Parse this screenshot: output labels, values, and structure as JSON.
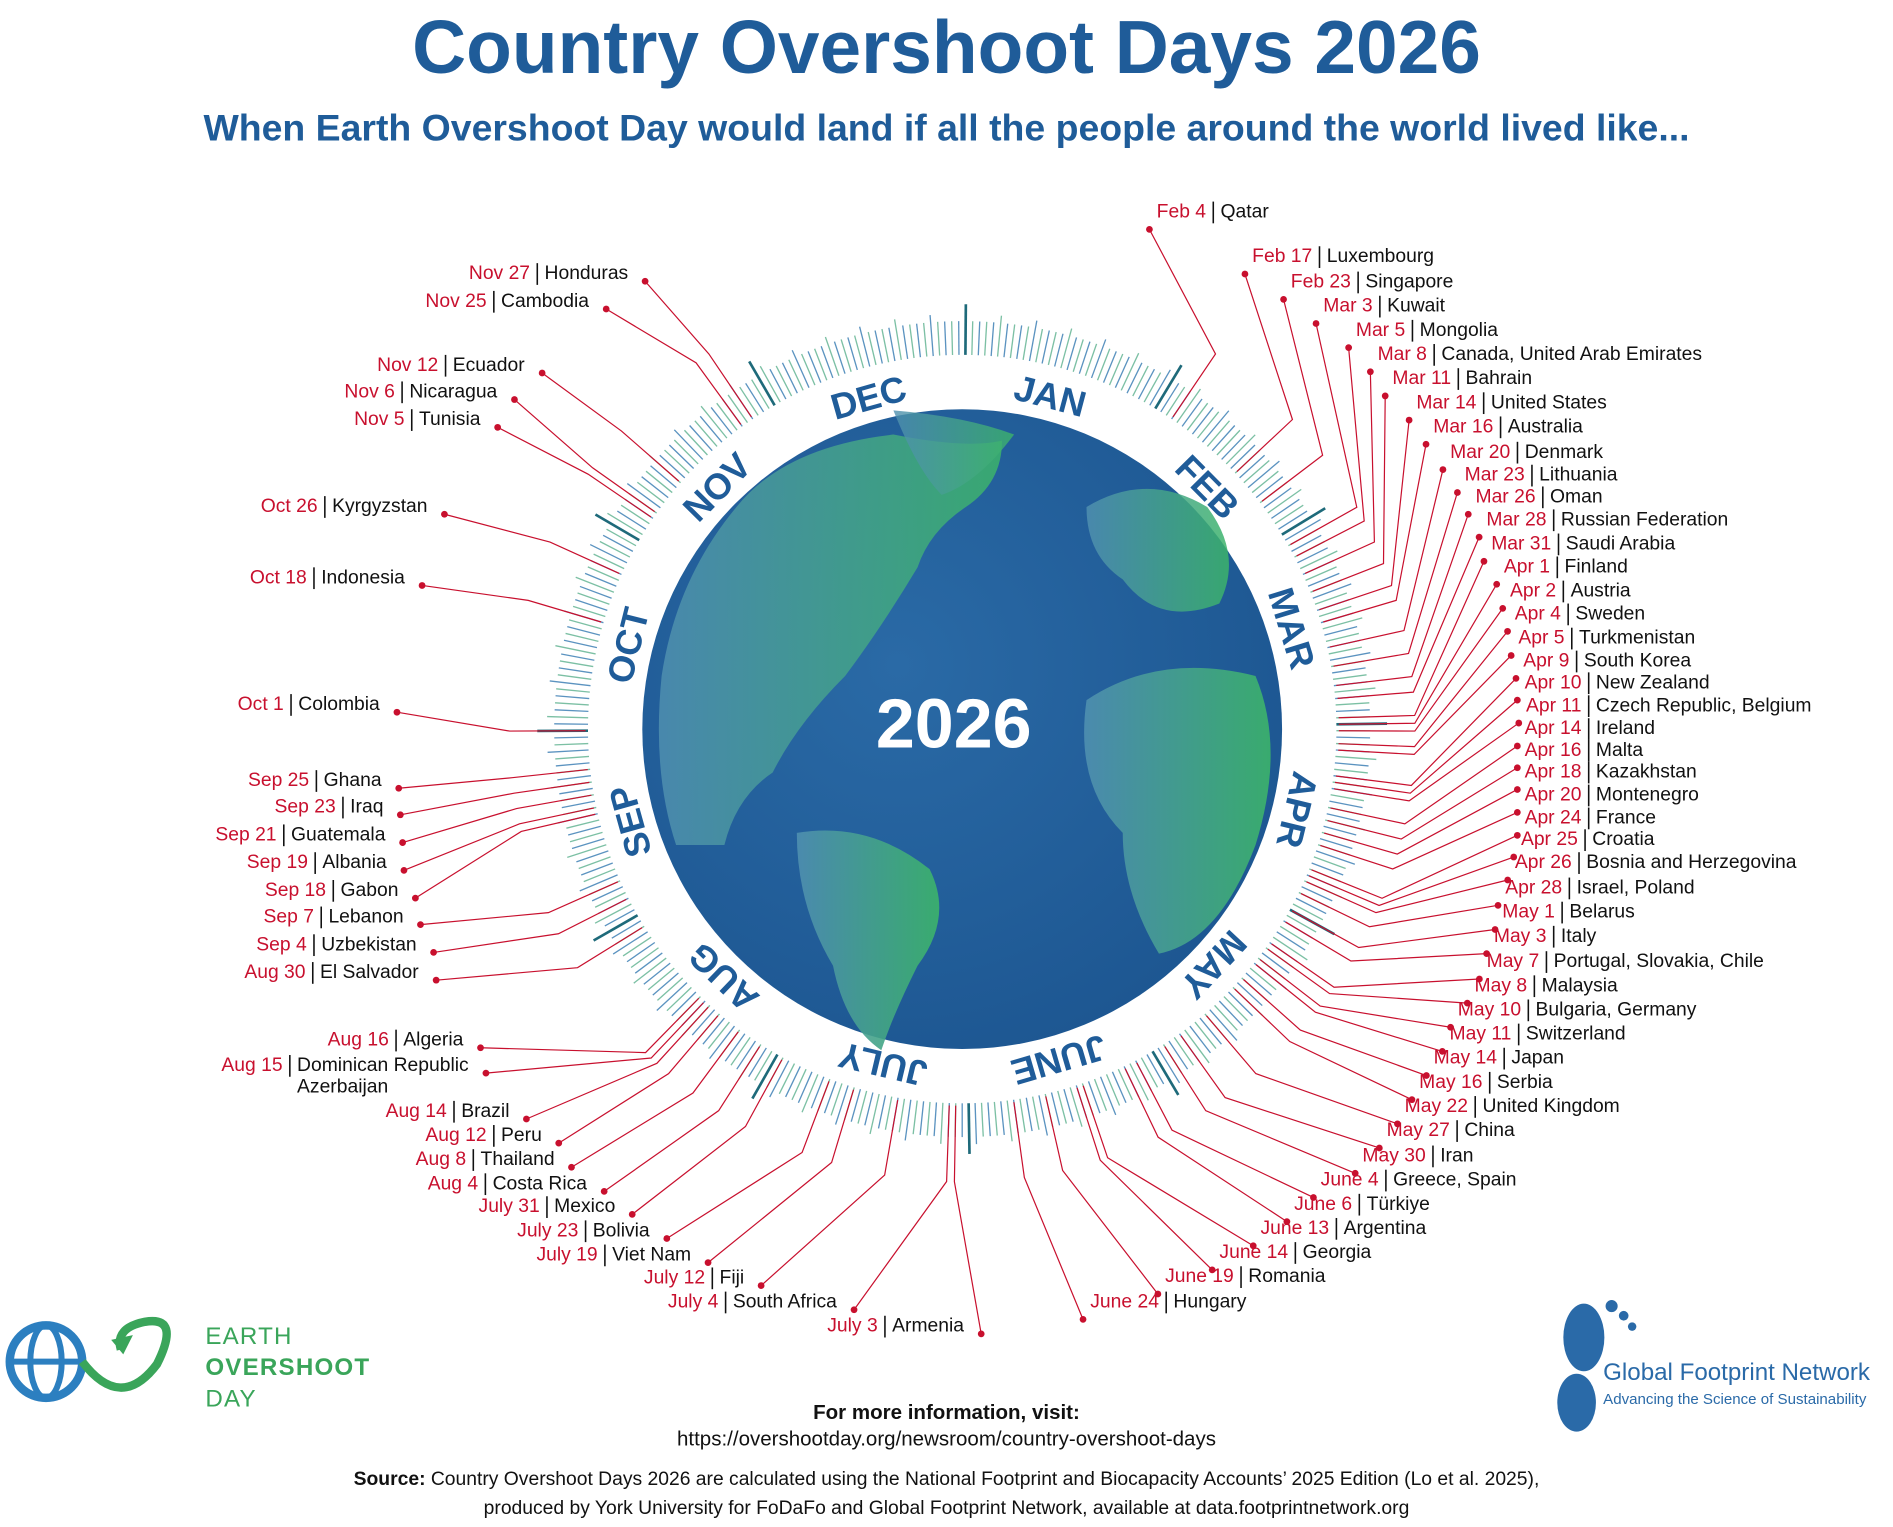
{
  "header": {
    "title": "Country Overshoot Days 2026",
    "subtitle": "When Earth Overshoot Day would land if all the people around the world lived like..."
  },
  "center_label": "2026",
  "months": [
    "JAN",
    "FEB",
    "MAR",
    "APR",
    "MAY",
    "JUNE",
    "JULY",
    "AUG",
    "SEP",
    "OCT",
    "NOV",
    "DEC"
  ],
  "countries": [
    {
      "date": "Feb 4",
      "country": "Qatar"
    },
    {
      "date": "Feb 17",
      "country": "Luxembourg"
    },
    {
      "date": "Feb 23",
      "country": "Singapore"
    },
    {
      "date": "Mar 3",
      "country": "Kuwait"
    },
    {
      "date": "Mar 5",
      "country": "Mongolia"
    },
    {
      "date": "Mar 8",
      "country": "Canada, United Arab Emirates"
    },
    {
      "date": "Mar 11",
      "country": "Bahrain"
    },
    {
      "date": "Mar 14",
      "country": "United States"
    },
    {
      "date": "Mar 16",
      "country": "Australia"
    },
    {
      "date": "Mar 20",
      "country": "Denmark"
    },
    {
      "date": "Mar 23",
      "country": "Lithuania"
    },
    {
      "date": "Mar 26",
      "country": "Oman"
    },
    {
      "date": "Mar 28",
      "country": "Russian Federation"
    },
    {
      "date": "Mar 31",
      "country": "Saudi Arabia"
    },
    {
      "date": "Apr 1",
      "country": "Finland"
    },
    {
      "date": "Apr 2",
      "country": "Austria"
    },
    {
      "date": "Apr 4",
      "country": "Sweden"
    },
    {
      "date": "Apr 5",
      "country": "Turkmenistan"
    },
    {
      "date": "Apr 9",
      "country": "South Korea"
    },
    {
      "date": "Apr 10",
      "country": "New Zealand"
    },
    {
      "date": "Apr 11",
      "country": "Czech Republic, Belgium"
    },
    {
      "date": "Apr 14",
      "country": "Ireland"
    },
    {
      "date": "Apr 16",
      "country": "Malta"
    },
    {
      "date": "Apr 18",
      "country": "Kazakhstan"
    },
    {
      "date": "Apr 20",
      "country": "Montenegro"
    },
    {
      "date": "Apr 24",
      "country": "France"
    },
    {
      "date": "Apr 25",
      "country": "Croatia"
    },
    {
      "date": "Apr 26",
      "country": "Bosnia and Herzegovina"
    },
    {
      "date": "Apr 28",
      "country": "Israel, Poland"
    },
    {
      "date": "May 1",
      "country": "Belarus"
    },
    {
      "date": "May 3",
      "country": "Italy"
    },
    {
      "date": "May 7",
      "country": "Portugal, Slovakia, Chile"
    },
    {
      "date": "May 8",
      "country": "Malaysia"
    },
    {
      "date": "May 10",
      "country": "Bulgaria, Germany"
    },
    {
      "date": "May 11",
      "country": "Switzerland"
    },
    {
      "date": "May 14",
      "country": "Japan"
    },
    {
      "date": "May 16",
      "country": "Serbia"
    },
    {
      "date": "May 22",
      "country": "United Kingdom"
    },
    {
      "date": "May 27",
      "country": "China"
    },
    {
      "date": "May 30",
      "country": "Iran"
    },
    {
      "date": "June 4",
      "country": "Greece, Spain"
    },
    {
      "date": "June 6",
      "country": "Türkiye"
    },
    {
      "date": "June 13",
      "country": "Argentina"
    },
    {
      "date": "June 14",
      "country": "Georgia"
    },
    {
      "date": "June 19",
      "country": "Romania"
    },
    {
      "date": "June 24",
      "country": "Hungary"
    },
    {
      "date": "Nov 27",
      "country": "Honduras"
    },
    {
      "date": "Nov 25",
      "country": "Cambodia"
    },
    {
      "date": "Nov 12",
      "country": "Ecuador"
    },
    {
      "date": "Nov 6",
      "country": "Nicaragua"
    },
    {
      "date": "Nov 5",
      "country": "Tunisia"
    },
    {
      "date": "Oct 26",
      "country": "Kyrgyzstan"
    },
    {
      "date": "Oct 18",
      "country": "Indonesia"
    },
    {
      "date": "Oct 1",
      "country": "Colombia"
    },
    {
      "date": "Sep 25",
      "country": "Ghana"
    },
    {
      "date": "Sep 23",
      "country": "Iraq"
    },
    {
      "date": "Sep 21",
      "country": "Guatemala"
    },
    {
      "date": "Sep 19",
      "country": "Albania"
    },
    {
      "date": "Sep 18",
      "country": "Gabon"
    },
    {
      "date": "Sep 7",
      "country": "Lebanon"
    },
    {
      "date": "Sep 4",
      "country": "Uzbekistan"
    },
    {
      "date": "Aug 30",
      "country": "El Salvador"
    },
    {
      "date": "Aug 16",
      "country": "Algeria"
    },
    {
      "date": "Aug 15",
      "country": "Dominican Republic",
      "country_cont": "Azerbaijan"
    },
    {
      "date": "Aug 14",
      "country": "Brazil"
    },
    {
      "date": "Aug 12",
      "country": "Peru"
    },
    {
      "date": "Aug 8",
      "country": "Thailand"
    },
    {
      "date": "Aug 4",
      "country": "Costa Rica"
    },
    {
      "date": "July 31",
      "country": "Mexico"
    },
    {
      "date": "July 23",
      "country": "Bolivia"
    },
    {
      "date": "July 19",
      "country": "Viet Nam"
    },
    {
      "date": "July 12",
      "country": "Fiji"
    },
    {
      "date": "July 4",
      "country": "South Africa"
    },
    {
      "date": "July 3",
      "country": "Armenia"
    }
  ],
  "logos": {
    "earth_overshoot_day": [
      "EARTH",
      "OVERSHOOT",
      "DAY"
    ],
    "gfn_name": "Global Footprint Network",
    "gfn_tagline": "Advancing the Science of Sustainability"
  },
  "footer": {
    "info_heading": "For more information, visit:",
    "url": "https://overshootday.org/newsroom/country-overshoot-days",
    "source_label": "Source:",
    "source_line_1": " Country Overshoot Days 2026 are calculated using the National Footprint and Biocapacity Accounts’ 2025 Edition (Lo et al. 2025),",
    "source_line_2": "produced by York University for FoDaFo and Global Footprint Network, available at data.footprintnetwork.org"
  }
}
